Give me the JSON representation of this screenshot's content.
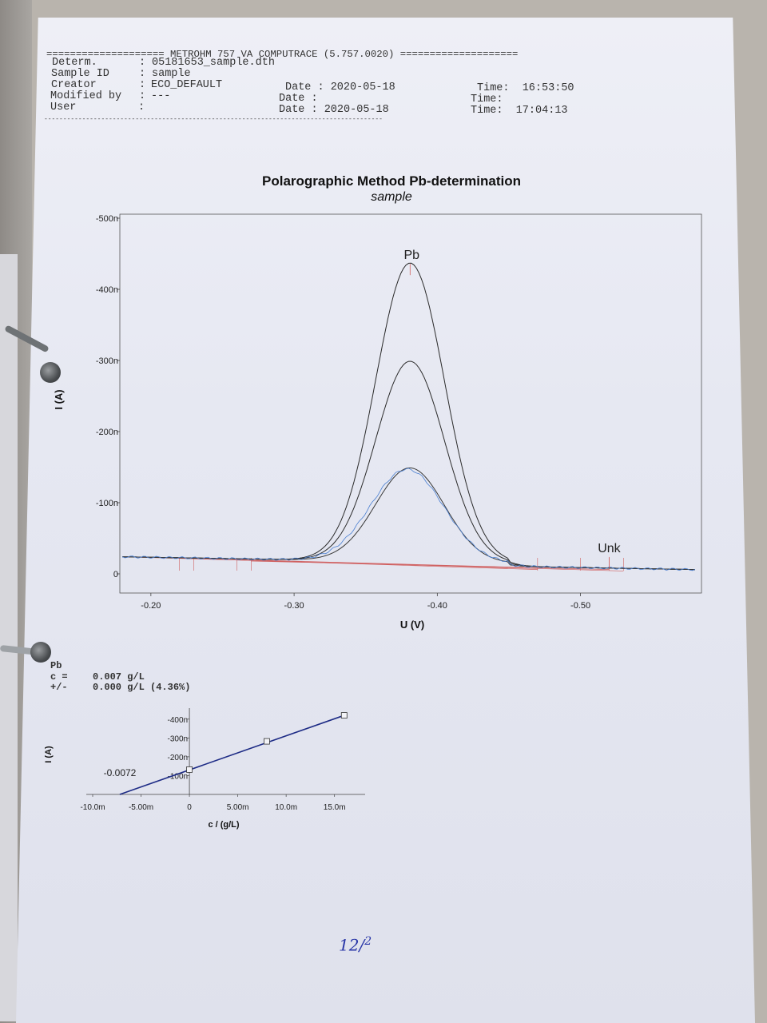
{
  "header": {
    "banner": "==================== METROHM 757 VA COMPUTRACE (5.757.0020) ====================",
    "rows": [
      {
        "label": "Determ.",
        "value": "05181653_sample.dth"
      },
      {
        "label": "Sample ID",
        "value": "sample"
      },
      {
        "label": "Creator",
        "value": "ECO_DEFAULT"
      },
      {
        "label": "Modified by",
        "value": "---"
      },
      {
        "label": "User",
        "value": ""
      }
    ],
    "dates": [
      "Date : 2020-05-18",
      "Date :",
      "Date : 2020-05-18"
    ],
    "times": [
      "Time:  16:53:50",
      "Time:",
      "Time:  17:04:13"
    ],
    "rule": "-----------------------------------------------------------------------------------------"
  },
  "main_chart_text": {
    "title": "Polarographic Method  Pb-determination",
    "subtitle": "sample"
  },
  "result": {
    "element": "Pb",
    "c_label": "c =",
    "c_value": "0.007 g/L",
    "pm_label": "+/-",
    "pm_value": "0.000 g/L (4.36%)"
  },
  "handwriting": "12/",
  "handwriting_sup": "2",
  "chart_data": [
    {
      "type": "line",
      "title": "Polarographic Method  Pb-determination",
      "subtitle": "sample",
      "xlabel": "U (V)",
      "ylabel": "I (A)",
      "xlim": [
        -0.18,
        -0.58
      ],
      "ylim": [
        0,
        -500
      ],
      "x_ticks": [
        -0.2,
        -0.3,
        -0.4,
        -0.5
      ],
      "x_tick_labels": [
        "-0.20",
        "-0.30",
        "-0.40",
        "-0.50"
      ],
      "y_ticks": [
        -500,
        -400,
        -300,
        -200,
        -100,
        0
      ],
      "y_tick_labels": [
        "-500n",
        "-400n",
        "-300n",
        "-200n",
        "-100n",
        "0"
      ],
      "y_unit": "nA",
      "grid": false,
      "peak_labels": [
        {
          "text": "Pb",
          "x": -0.381,
          "y": -420
        },
        {
          "text": "Unk",
          "x": -0.52,
          "y": -8
        }
      ],
      "series": [
        {
          "color": "#2b2b2b",
          "peak_height": 420,
          "peak_x": -0.381,
          "width": 0.034
        },
        {
          "color": "#2b2b2b",
          "peak_height": 282,
          "peak_x": -0.381,
          "width": 0.034
        },
        {
          "color": "#3a3a3a",
          "peak_height": 132,
          "peak_x": -0.381,
          "width": 0.034
        },
        {
          "color": "#4a7fd1",
          "peak_height": 130,
          "peak_x": -0.379,
          "width": 0.036
        }
      ],
      "baselines": {
        "color": "#d06060"
      }
    },
    {
      "type": "scatter",
      "title": "",
      "xlabel": "c / (g/L)",
      "ylabel": "I (A)",
      "xlim": [
        -0.01,
        0.018
      ],
      "ylim": [
        0,
        -450
      ],
      "x_ticks": [
        -0.01,
        -0.005,
        0,
        0.005,
        0.01,
        0.015
      ],
      "x_tick_labels": [
        "-10.0m",
        "-5.00m",
        "0",
        "5.00m",
        "10.0m",
        "15.0m"
      ],
      "y_ticks": [
        -100,
        -200,
        -300,
        -400
      ],
      "y_tick_labels": [
        "-100n",
        "-200n",
        "-300n",
        "-400n"
      ],
      "points": [
        {
          "x": 0,
          "y": -132
        },
        {
          "x": 0.008,
          "y": -282
        },
        {
          "x": 0.016,
          "y": -420
        }
      ],
      "fit_line": {
        "x0": -0.0072,
        "x1": 0.016
      },
      "annotation": "-0.0072"
    }
  ]
}
